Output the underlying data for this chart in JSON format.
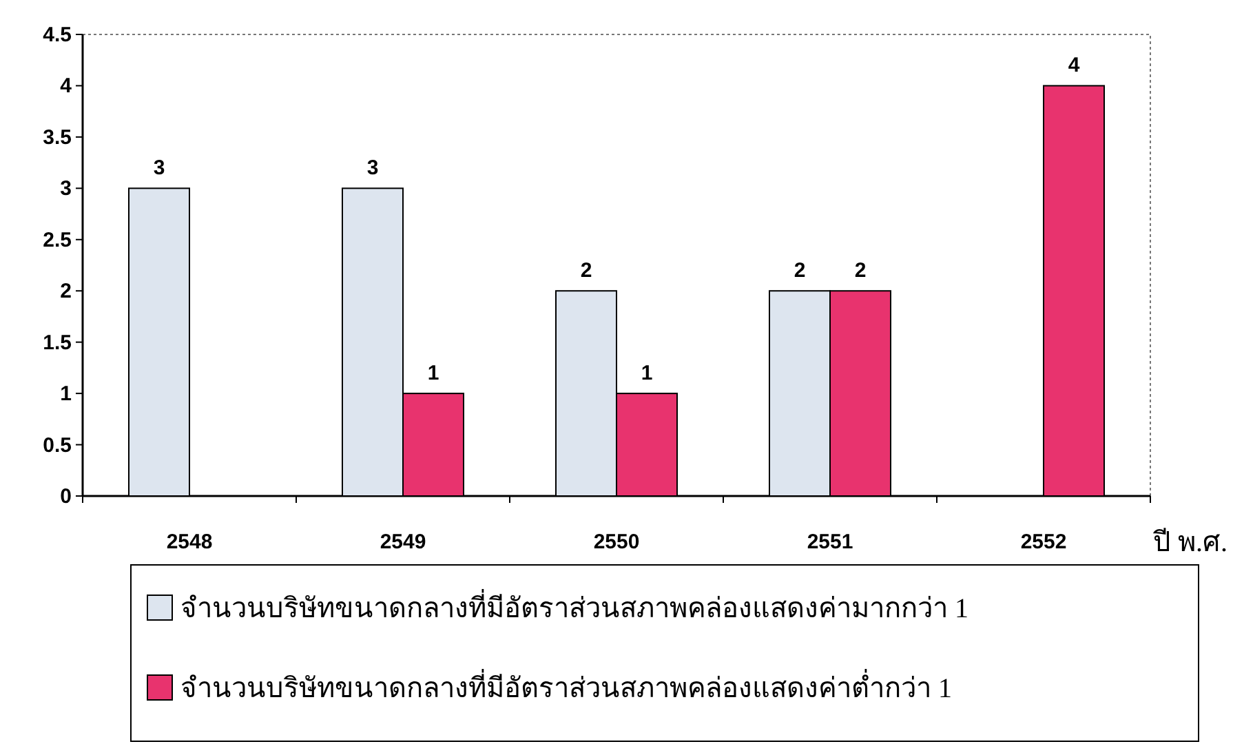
{
  "chart_data": {
    "type": "bar",
    "categories": [
      "2548",
      "2549",
      "2550",
      "2551",
      "2552"
    ],
    "series": [
      {
        "name": "จำนวนบริษัทขนาดกลางที่มีอัตราส่วนสภาพคล่องแสดงค่ามากกว่า 1",
        "color": "#dde5ef",
        "values": [
          3,
          3,
          2,
          2,
          null
        ]
      },
      {
        "name": "จำนวนบริษัทขนาดกลางที่มีอัตราส่วนสภาพคล่องแสดงค่าต่ำกว่า 1",
        "color": "#e8336e",
        "values": [
          null,
          1,
          1,
          2,
          4
        ]
      }
    ],
    "xlabel": "ปี พ.ศ.",
    "ylim": [
      0,
      4.5
    ],
    "yticks": [
      0,
      0.5,
      1,
      1.5,
      2,
      2.5,
      3,
      3.5,
      4,
      4.5
    ],
    "data_labels": true,
    "legend": "bottom",
    "grid": false
  }
}
